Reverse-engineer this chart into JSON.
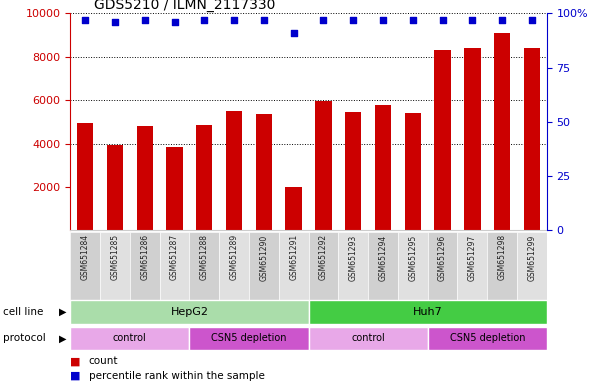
{
  "title": "GDS5210 / ILMN_2117330",
  "samples": [
    "GSM651284",
    "GSM651285",
    "GSM651286",
    "GSM651287",
    "GSM651288",
    "GSM651289",
    "GSM651290",
    "GSM651291",
    "GSM651292",
    "GSM651293",
    "GSM651294",
    "GSM651295",
    "GSM651296",
    "GSM651297",
    "GSM651298",
    "GSM651299"
  ],
  "counts": [
    4950,
    3950,
    4800,
    3850,
    4850,
    5500,
    5350,
    2000,
    5950,
    5450,
    5800,
    5400,
    8300,
    8400,
    9100,
    8400
  ],
  "percentile_ranks": [
    97,
    96,
    97,
    96,
    97,
    97,
    97,
    91,
    97,
    97,
    97,
    97,
    97,
    97,
    97,
    97
  ],
  "bar_color": "#cc0000",
  "dot_color": "#0000cc",
  "ylim_left": [
    0,
    10000
  ],
  "ylim_right": [
    0,
    100
  ],
  "yticks_left": [
    2000,
    4000,
    6000,
    8000,
    10000
  ],
  "yticks_right": [
    0,
    25,
    50,
    75,
    100
  ],
  "cell_line": [
    {
      "label": "HepG2",
      "start": 0,
      "end": 8,
      "color": "#aaddaa"
    },
    {
      "label": "Huh7",
      "start": 8,
      "end": 16,
      "color": "#44cc44"
    }
  ],
  "protocol": [
    {
      "label": "control",
      "start": 0,
      "end": 4,
      "color": "#e8a8e8"
    },
    {
      "label": "CSN5 depletion",
      "start": 4,
      "end": 8,
      "color": "#cc55cc"
    },
    {
      "label": "control",
      "start": 8,
      "end": 12,
      "color": "#e8a8e8"
    },
    {
      "label": "CSN5 depletion",
      "start": 12,
      "end": 16,
      "color": "#cc55cc"
    }
  ],
  "cell_line_label": "cell line",
  "protocol_label": "protocol",
  "legend_count_label": "count",
  "legend_pct_label": "percentile rank within the sample",
  "axis_color_left": "#cc0000",
  "axis_color_right": "#0000cc"
}
